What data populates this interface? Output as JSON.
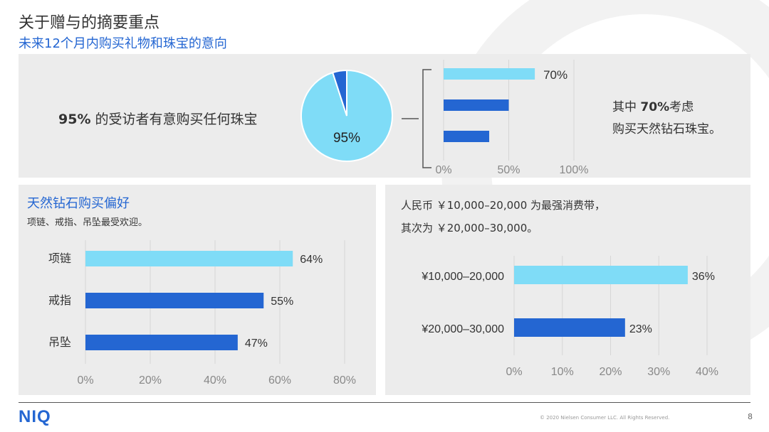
{
  "header": {
    "title": "关于赠与的摘要重点",
    "subtitle": "未来12个月内购买礼物和珠宝的意向"
  },
  "top_panel": {
    "intent_value": "95%",
    "intent_text": " 的受访者有意购买任何珠宝",
    "note_prefix": "其中 ",
    "note_value": "70%",
    "note_suffix": "考虑",
    "note_line2": "购买天然钻石珠宝。"
  },
  "left_panel": {
    "title": "天然钻石购买偏好",
    "desc": "项链、戒指、吊坠最受欢迎。"
  },
  "right_panel": {
    "line1": "人民币 ￥10,000–20,000 为最强消费带，",
    "line2": "其次为 ￥20,000–30,000。"
  },
  "footer": {
    "logo": "NIQ",
    "copyright": "© 2020 Nielsen Consumer LLC. All Rights Reserved.",
    "page": "8"
  },
  "colors": {
    "light_blue": "#7fdcf7",
    "dark_blue": "#2466d2",
    "panel_bg": "#ececec",
    "title_blue": "#2466d2"
  },
  "chart_data": [
    {
      "type": "pie",
      "labels": [
        "",
        ""
      ],
      "values": [
        95,
        5
      ],
      "data_labels": [
        "95%",
        ""
      ]
    },
    {
      "type": "bar",
      "orientation": "horizontal",
      "categories": [
        "",
        "",
        ""
      ],
      "values": [
        70,
        50,
        35
      ],
      "data_labels": [
        "70%",
        "",
        ""
      ],
      "xlim": [
        0,
        100
      ],
      "x_ticks": [
        "0%",
        "50%",
        "100%"
      ]
    },
    {
      "type": "bar",
      "orientation": "horizontal",
      "categories": [
        "项链",
        "戒指",
        "吊坠"
      ],
      "values": [
        64,
        55,
        47
      ],
      "data_labels": [
        "64%",
        "55%",
        "47%"
      ],
      "xlim": [
        0,
        80
      ],
      "x_ticks": [
        "0%",
        "20%",
        "40%",
        "60%",
        "80%"
      ],
      "grid": true
    },
    {
      "type": "bar",
      "orientation": "horizontal",
      "categories": [
        "¥10,000–20,000",
        "¥20,000–30,000"
      ],
      "values": [
        36,
        23
      ],
      "data_labels": [
        "36%",
        "23%"
      ],
      "xlim": [
        0,
        40
      ],
      "x_ticks": [
        "0%",
        "10%",
        "20%",
        "30%",
        "40%"
      ],
      "grid": true
    }
  ]
}
